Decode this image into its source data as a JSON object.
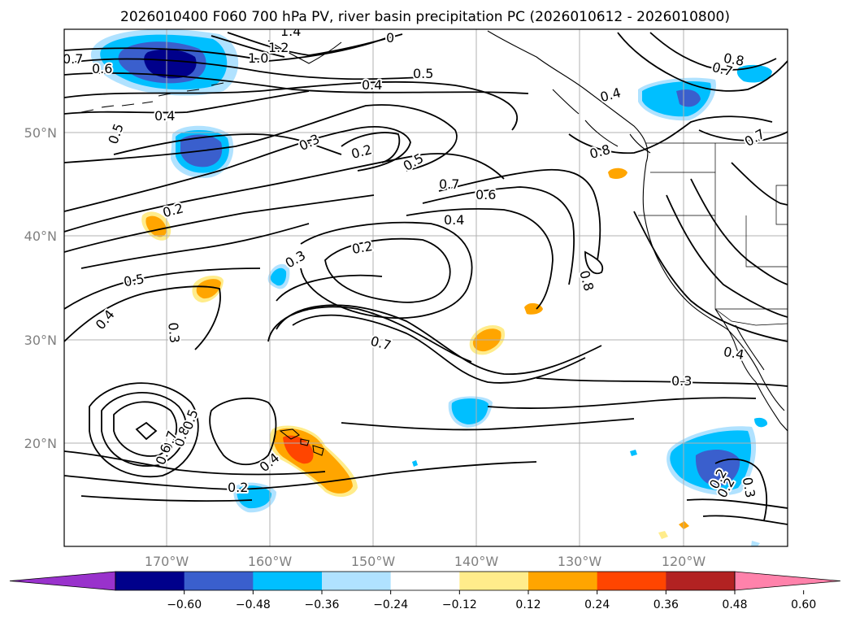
{
  "title": "2026010400 F060 700 hPa PV, river basin precipitation PC (2026010612 - 2026010800)",
  "axes": {
    "lat_labels": [
      "50°N",
      "40°N",
      "30°N",
      "20°N"
    ],
    "lon_labels": [
      "170°W",
      "160°W",
      "150°W",
      "140°W",
      "130°W",
      "120°W"
    ]
  },
  "map_data": {
    "type": "filled-contour-map",
    "field_contours": "700 hPa PV",
    "field_shading": "river basin precipitation PC",
    "lon_range": [
      180,
      110
    ],
    "lat_range": [
      10,
      60
    ],
    "grid": true,
    "contour_labels": [
      "1.4",
      "1.2",
      "1.0",
      "0",
      "0.7",
      "0.6",
      "0.4",
      "0.5",
      "0.5",
      "0.4",
      "0.3",
      "0.2",
      "0.5",
      "0.7",
      "0.6",
      "0.4",
      "0.2",
      "0.3",
      "0.2",
      "0.5",
      "0.4",
      "0.3",
      "0.7",
      "0.3",
      "0.8",
      "0.7",
      "0.8",
      "0.4",
      "0.8",
      "0.7",
      "0.8",
      "0.4",
      "0.5",
      "0.7",
      "0.6",
      "0.4",
      "0.2",
      "0.2",
      "0.3",
      "0.2"
    ]
  },
  "colorbar": {
    "tick_labels": [
      "−0.60",
      "−0.48",
      "−0.36",
      "−0.24",
      "−0.12",
      "0.12",
      "0.24",
      "0.36",
      "0.48",
      "0.60"
    ],
    "colors": [
      "#9932cc",
      "#00008b",
      "#3a5fcd",
      "#00bfff",
      "#b0e2ff",
      "#ffffff",
      "#ffec8b",
      "#ffa500",
      "#ff4500",
      "#b22222",
      "#ff82ab"
    ],
    "extend": "both"
  }
}
